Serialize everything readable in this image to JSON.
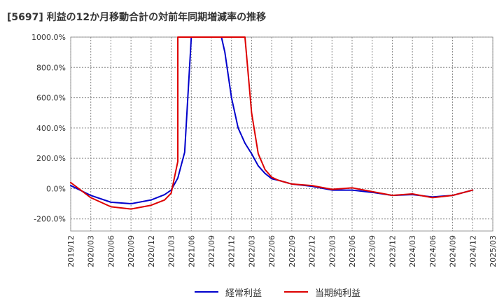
{
  "chart_data": {
    "type": "line",
    "title": "[5697]  利益の12か月移動合計の対前年同期増減率の推移",
    "xlabel": "",
    "ylabel": "",
    "ylim": [
      -280,
      1000
    ],
    "yticks": [
      -200,
      0,
      200,
      400,
      600,
      800,
      1000
    ],
    "ytick_labels": [
      "-200.0%",
      "0.0%",
      "200.0%",
      "400.0%",
      "600.0%",
      "800.0%",
      "1000.0%"
    ],
    "categories": [
      "2019/12",
      "2020/03",
      "2020/06",
      "2020/09",
      "2020/12",
      "2021/03",
      "2021/06",
      "2021/09",
      "2021/12",
      "2022/03",
      "2022/06",
      "2022/09",
      "2022/12",
      "2023/03",
      "2023/06",
      "2023/09",
      "2023/12",
      "2024/03",
      "2024/06",
      "2024/09",
      "2024/12",
      "2025/03"
    ],
    "grid": true,
    "legend_position": "bottom",
    "series": [
      {
        "name": "経常利益",
        "color": "#0000cc",
        "points": [
          [
            0,
            20
          ],
          [
            1,
            -45
          ],
          [
            2,
            -90
          ],
          [
            3,
            -100
          ],
          [
            4,
            -75
          ],
          [
            4.67,
            -40
          ],
          [
            5,
            -10
          ],
          [
            5.33,
            70
          ],
          [
            5.67,
            240
          ],
          [
            6,
            1000
          ],
          [
            7.5,
            1000
          ],
          [
            7.67,
            900
          ],
          [
            8,
            600
          ],
          [
            8.33,
            400
          ],
          [
            8.67,
            300
          ],
          [
            9,
            230
          ],
          [
            9.33,
            150
          ],
          [
            9.67,
            100
          ],
          [
            10,
            65
          ],
          [
            10.33,
            55
          ],
          [
            11,
            30
          ],
          [
            12,
            15
          ],
          [
            13,
            -10
          ],
          [
            14,
            -10
          ],
          [
            15,
            -25
          ],
          [
            16,
            -45
          ],
          [
            17,
            -40
          ],
          [
            18,
            -55
          ],
          [
            19,
            -45
          ],
          [
            20,
            -10
          ]
        ]
      },
      {
        "name": "当期純利益",
        "color": "#dd0000",
        "points": [
          [
            0,
            40
          ],
          [
            1,
            -60
          ],
          [
            2,
            -120
          ],
          [
            3,
            -135
          ],
          [
            4,
            -110
          ],
          [
            4.67,
            -75
          ],
          [
            5,
            -30
          ],
          [
            5.33,
            180
          ],
          [
            5.33,
            1000
          ],
          [
            8.67,
            1000
          ],
          [
            9,
            500
          ],
          [
            9.33,
            230
          ],
          [
            9.67,
            125
          ],
          [
            10,
            75
          ],
          [
            10.33,
            55
          ],
          [
            11,
            30
          ],
          [
            12,
            20
          ],
          [
            13,
            -5
          ],
          [
            14,
            5
          ],
          [
            15,
            -20
          ],
          [
            16,
            -45
          ],
          [
            17,
            -35
          ],
          [
            18,
            -60
          ],
          [
            19,
            -45
          ],
          [
            20,
            -10
          ]
        ]
      }
    ]
  }
}
